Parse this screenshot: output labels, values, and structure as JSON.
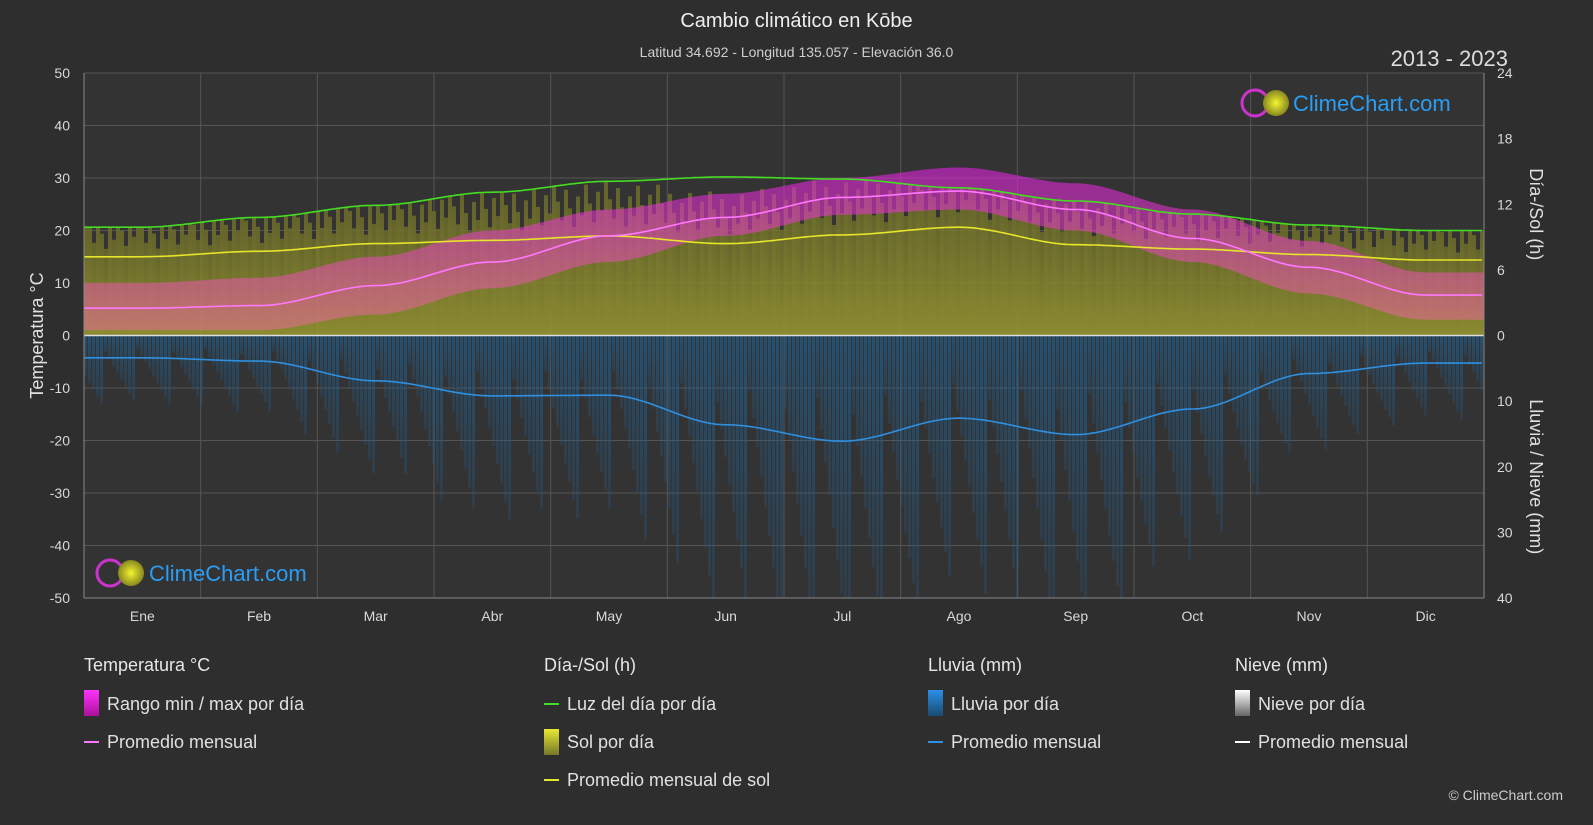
{
  "header": {
    "title": "Cambio climático en Kōbe",
    "subtitle": "Latitud 34.692 - Longitud 135.057 - Elevación 36.0",
    "years": "2013 - 2023"
  },
  "watermark": {
    "text": "ClimeChart.com"
  },
  "copyright": "© ClimeChart.com",
  "colors": {
    "background": "#2e2e2e",
    "temp_range": "#e020e0",
    "temp_avg": "#ff77ff",
    "daylight": "#44dd22",
    "sunshine": "#8a8a2a",
    "sunshine_avg": "#e6e62a",
    "rain": "#1a6fb0",
    "rain_avg": "#2f8fe0",
    "snow_avg": "#ffffff",
    "brand": "#2a9df4"
  },
  "legend": {
    "temp": {
      "header": "Temperatura °C",
      "range": "Rango min / max por día",
      "avg": "Promedio mensual"
    },
    "sun": {
      "header": "Día-/Sol (h)",
      "daylight": "Luz del día por día",
      "sun": "Sol por día",
      "avg": "Promedio mensual de sol"
    },
    "rain": {
      "header": "Lluvia (mm)",
      "rain": "Lluvia por día",
      "avg": "Promedio mensual"
    },
    "snow": {
      "header": "Nieve (mm)",
      "snow": "Nieve por día",
      "avg": "Promedio mensual"
    }
  },
  "chart_data": {
    "type": "area",
    "categories": [
      "Ene",
      "Feb",
      "Mar",
      "Abr",
      "May",
      "Jun",
      "Jul",
      "Ago",
      "Sep",
      "Oct",
      "Nov",
      "Dic"
    ],
    "axes": {
      "left": {
        "label": "Temperatura °C",
        "range": [
          -50,
          50
        ],
        "ticks": [
          50,
          40,
          30,
          20,
          10,
          0,
          -10,
          -20,
          -30,
          -40,
          -50
        ]
      },
      "right_top": {
        "label": "Día-/Sol (h)",
        "range": [
          0,
          24
        ],
        "ticks": [
          24,
          18,
          12,
          6,
          0
        ]
      },
      "right_bottom": {
        "label": "Lluvia / Nieve (mm)",
        "range": [
          0,
          40
        ],
        "ticks": [
          0,
          10,
          20,
          30,
          40
        ]
      }
    },
    "grid": true,
    "series": [
      {
        "name": "Luz del día por día",
        "unit": "h",
        "values": [
          9.9,
          10.8,
          11.9,
          13.1,
          14.1,
          14.5,
          14.3,
          13.5,
          12.3,
          11.1,
          10.1,
          9.6
        ]
      },
      {
        "name": "Promedio mensual de sol",
        "unit": "h",
        "values": [
          7.2,
          7.7,
          8.4,
          8.7,
          9.1,
          8.4,
          9.2,
          9.9,
          8.3,
          7.9,
          7.4,
          6.9
        ]
      },
      {
        "name": "Temperatura promedio mensual",
        "unit": "°C",
        "values": [
          5.2,
          5.7,
          9.5,
          14.0,
          19.0,
          22.5,
          26.3,
          27.5,
          24.0,
          18.5,
          13.0,
          7.7
        ]
      },
      {
        "name": "Temperatura máx diaria",
        "unit": "°C",
        "values": [
          10,
          11,
          15,
          20,
          24,
          27,
          30,
          32,
          29,
          24,
          18,
          12
        ]
      },
      {
        "name": "Temperatura mín diaria",
        "unit": "°C",
        "values": [
          1,
          1,
          4,
          9,
          14,
          19,
          23,
          24,
          20,
          14,
          8,
          3
        ]
      },
      {
        "name": "Lluvia promedio mensual",
        "unit": "mm",
        "values": [
          3.4,
          3.9,
          6.9,
          9.2,
          9.1,
          13.6,
          16.1,
          12.6,
          15.1,
          11.2,
          5.8,
          4.2
        ]
      }
    ]
  }
}
